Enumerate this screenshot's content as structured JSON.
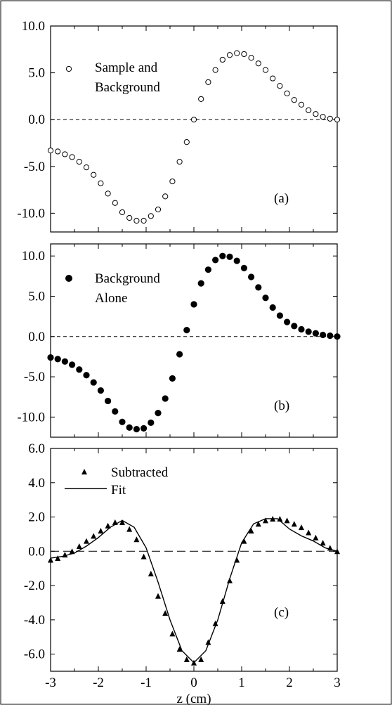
{
  "chart_data": [
    {
      "type": "scatter",
      "panel_label": "(a)",
      "legend": [
        "Sample and",
        "Background"
      ],
      "marker": "open-circle",
      "xlim": [
        -3,
        3
      ],
      "ylim": [
        -12,
        10
      ],
      "yticks": [
        "10.0",
        "5.0",
        "0.0",
        "-5.0",
        "-10.0"
      ],
      "ytick_values": [
        10,
        5,
        0,
        -5,
        -10
      ],
      "reference_line": 0,
      "series": [
        {
          "x": [
            -3.0,
            -2.85,
            -2.7,
            -2.55,
            -2.4,
            -2.25,
            -2.1,
            -1.95,
            -1.8,
            -1.65,
            -1.5,
            -1.35,
            -1.2,
            -1.05,
            -0.9,
            -0.75,
            -0.6,
            -0.45,
            -0.3,
            -0.15,
            0.0,
            0.15,
            0.3,
            0.45,
            0.6,
            0.75,
            0.9,
            1.05,
            1.2,
            1.35,
            1.5,
            1.65,
            1.8,
            1.95,
            2.1,
            2.25,
            2.4,
            2.55,
            2.7,
            2.85,
            3.0
          ],
          "y": [
            -3.3,
            -3.4,
            -3.7,
            -4.0,
            -4.5,
            -5.1,
            -5.9,
            -6.8,
            -7.9,
            -8.9,
            -9.9,
            -10.5,
            -10.8,
            -10.8,
            -10.3,
            -9.6,
            -8.2,
            -6.6,
            -4.5,
            -2.4,
            0.0,
            2.2,
            4.0,
            5.3,
            6.4,
            6.9,
            7.1,
            7.0,
            6.6,
            6.0,
            5.3,
            4.4,
            3.6,
            2.8,
            2.1,
            1.6,
            1.0,
            0.6,
            0.3,
            0.1,
            0.0
          ]
        }
      ]
    },
    {
      "type": "scatter",
      "panel_label": "(b)",
      "legend": [
        "Background",
        "Alone"
      ],
      "marker": "filled-circle",
      "xlim": [
        -3,
        3
      ],
      "ylim": [
        -12.5,
        11.5
      ],
      "yticks": [
        "10.0",
        "5.0",
        "0.0",
        "-5.0",
        "-10.0"
      ],
      "ytick_values": [
        10,
        5,
        0,
        -5,
        -10
      ],
      "reference_line": 0,
      "series": [
        {
          "x": [
            -3.0,
            -2.85,
            -2.7,
            -2.55,
            -2.4,
            -2.25,
            -2.1,
            -1.95,
            -1.8,
            -1.65,
            -1.5,
            -1.35,
            -1.2,
            -1.05,
            -0.9,
            -0.75,
            -0.6,
            -0.45,
            -0.3,
            -0.15,
            0.0,
            0.15,
            0.3,
            0.45,
            0.6,
            0.75,
            0.9,
            1.05,
            1.2,
            1.35,
            1.5,
            1.65,
            1.8,
            1.95,
            2.1,
            2.25,
            2.4,
            2.55,
            2.7,
            2.85,
            3.0
          ],
          "y": [
            -2.6,
            -2.8,
            -3.1,
            -3.5,
            -4.1,
            -4.8,
            -5.7,
            -6.7,
            -8.0,
            -9.3,
            -10.6,
            -11.3,
            -11.5,
            -11.4,
            -10.7,
            -9.5,
            -7.7,
            -5.2,
            -2.2,
            0.8,
            4.0,
            6.6,
            8.3,
            9.5,
            10.0,
            9.9,
            9.4,
            8.5,
            7.4,
            6.1,
            4.8,
            3.6,
            2.6,
            1.8,
            1.3,
            0.9,
            0.6,
            0.4,
            0.2,
            0.1,
            0.0
          ]
        }
      ]
    },
    {
      "type": "scatter+line",
      "panel_label": "(c)",
      "legend": [
        "Subtracted",
        "Fit"
      ],
      "xlabel": "z (cm)",
      "xlim": [
        -3,
        3
      ],
      "xticks": [
        "-3",
        "-2",
        "-1",
        "0",
        "1",
        "2",
        "3"
      ],
      "xtick_values": [
        -3,
        -2,
        -1,
        0,
        1,
        2,
        3
      ],
      "ylim": [
        -7,
        6
      ],
      "yticks": [
        "6.0",
        "4.0",
        "2.0",
        "0.0",
        "-2.0",
        "-4.0",
        "-6.0"
      ],
      "ytick_values": [
        6,
        4,
        2,
        0,
        -2,
        -4,
        -6
      ],
      "reference_line": 0,
      "series": [
        {
          "name": "Subtracted",
          "marker": "filled-triangle",
          "x": [
            -3.0,
            -2.85,
            -2.7,
            -2.55,
            -2.4,
            -2.25,
            -2.1,
            -1.95,
            -1.8,
            -1.65,
            -1.5,
            -1.35,
            -1.2,
            -1.05,
            -0.9,
            -0.75,
            -0.6,
            -0.45,
            -0.3,
            -0.15,
            0.0,
            0.15,
            0.3,
            0.45,
            0.6,
            0.75,
            0.9,
            1.05,
            1.2,
            1.35,
            1.5,
            1.65,
            1.8,
            1.95,
            2.1,
            2.25,
            2.4,
            2.55,
            2.7,
            2.85,
            3.0
          ],
          "y": [
            -0.5,
            -0.4,
            -0.2,
            0.0,
            0.3,
            0.6,
            0.9,
            1.2,
            1.5,
            1.7,
            1.7,
            1.3,
            0.7,
            -0.3,
            -1.3,
            -2.6,
            -3.6,
            -4.8,
            -5.7,
            -6.3,
            -6.5,
            -6.3,
            -5.3,
            -4.2,
            -2.9,
            -1.7,
            -0.5,
            0.6,
            1.2,
            1.6,
            1.8,
            1.9,
            1.9,
            1.8,
            1.6,
            1.4,
            1.1,
            0.8,
            0.5,
            0.2,
            0.0
          ]
        },
        {
          "name": "Fit",
          "style": "solid-line",
          "x": [
            -3.0,
            -2.75,
            -2.5,
            -2.25,
            -2.0,
            -1.75,
            -1.5,
            -1.25,
            -1.0,
            -0.75,
            -0.5,
            -0.25,
            0.0,
            0.25,
            0.5,
            0.75,
            1.0,
            1.25,
            1.5,
            1.75,
            2.0,
            2.25,
            2.5,
            2.75,
            3.0
          ],
          "y": [
            -0.4,
            -0.3,
            -0.1,
            0.3,
            0.8,
            1.4,
            1.8,
            1.4,
            0.2,
            -1.8,
            -4.0,
            -5.8,
            -6.5,
            -5.8,
            -4.0,
            -1.6,
            0.5,
            1.6,
            1.9,
            1.9,
            1.3,
            0.9,
            0.6,
            0.2,
            0.0
          ]
        }
      ]
    }
  ]
}
